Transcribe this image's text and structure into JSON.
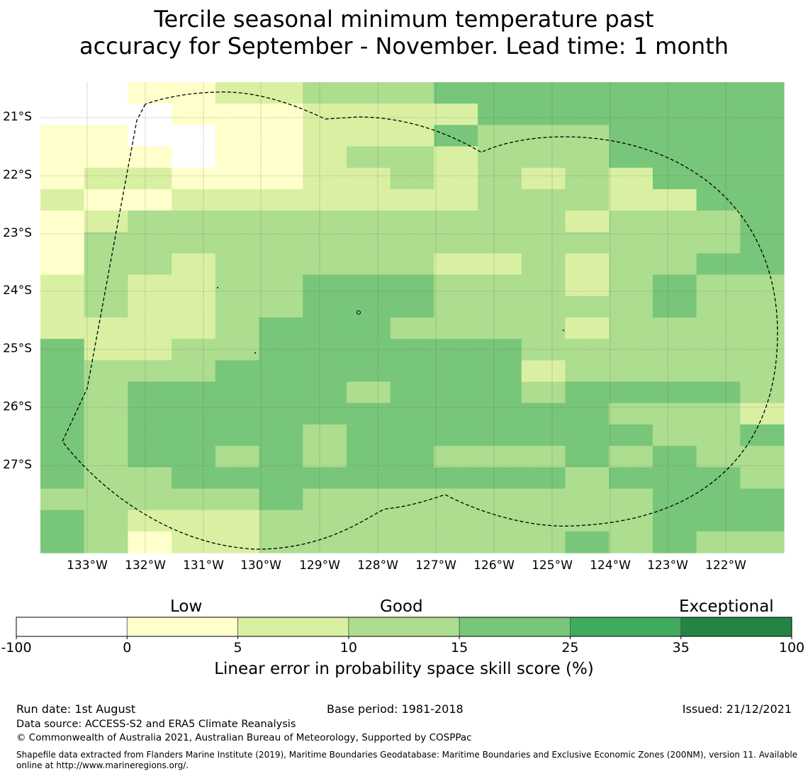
{
  "title_line1": "Tercile seasonal minimum temperature past",
  "title_line2": "accuracy for September - November. Lead time: 1 month",
  "map": {
    "lon_labels": [
      "133°W",
      "132°W",
      "131°W",
      "130°W",
      "129°W",
      "128°W",
      "127°W",
      "126°W",
      "125°W",
      "124°W",
      "123°W",
      "122°W"
    ],
    "lat_labels": [
      "21°S",
      "22°S",
      "23°S",
      "24°S",
      "25°S",
      "26°S",
      "27°S"
    ],
    "class_colors": [
      "#ffffff",
      "#ffffcc",
      "#d9f0a3",
      "#addd8e",
      "#78c679",
      "#41ab5d",
      "#238443"
    ],
    "cell_classes": [
      "00112233344444444",
      "00011122224444444",
      "11001122243334444",
      "11101123323334444",
      "12211122323232444",
      "21122222223332244",
      "12333333333323334",
      "13333333333333334",
      "13323333322323344",
      "23223344433323433",
      "23223344433333433",
      "22223444333323333",
      "42233444444333333",
      "43334444444233333",
      "43444443444344443",
      "43444444444443332",
      "43444434444444334",
      "43443434433343433",
      "43344444444434443",
      "33333433333333444",
      "43222333333333444",
      "43122333333343433"
    ]
  },
  "colorbar": {
    "category_labels": [
      "Low",
      "Good",
      "Exceptional"
    ],
    "tick_labels": [
      "-100",
      "0",
      "5",
      "10",
      "15",
      "25",
      "35",
      "100"
    ],
    "colors": [
      "#ffffff",
      "#ffffcc",
      "#d9f0a3",
      "#addd8e",
      "#78c679",
      "#41ab5d",
      "#238443"
    ],
    "axis_label": "Linear error in probability space skill score (%)"
  },
  "footer": {
    "run_date": "Run date: 1st August",
    "base_period": "Base period: 1981-2018",
    "issued": "Issued: 21/12/2021",
    "data_source": "Data source: ACCESS-S2 and ERA5 Climate Reanalysis",
    "copyright": "© Commonwealth of Australia 2021, Australian Bureau of Meteorology, Supported by COSPPac",
    "shapefile_line1": "Shapefile data extracted from Flanders Marine Institute (2019), Maritime Boundaries Geodatabase: Maritime Boundaries and Exclusive Economic Zones (200NM), version 11. Available",
    "shapefile_line2": "online at http://www.marineregions.org/."
  }
}
